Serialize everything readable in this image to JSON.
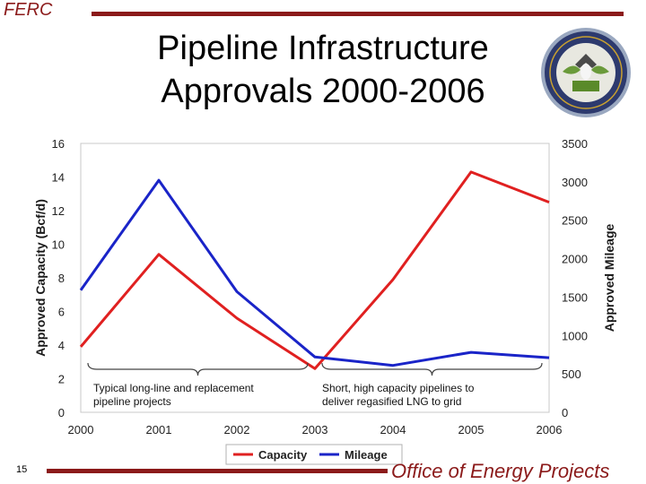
{
  "header": {
    "org_label": "FERC",
    "title_line1": "Pipeline Infrastructure",
    "title_line2": "Approvals 2000-2006"
  },
  "footer": {
    "page_number": "15",
    "office": "Office of Energy Projects"
  },
  "colors": {
    "brand": "#8b1a1a",
    "capacity": "#e02020",
    "mileage": "#1a24c8"
  },
  "chart_data": {
    "type": "line",
    "x": [
      2000,
      2001,
      2002,
      2003,
      2004,
      2005,
      2006
    ],
    "xlabel": "",
    "ylabel": "Approved Capacity (Bcf/d)",
    "y2label": "Approved Mileage",
    "ylim": [
      0,
      16
    ],
    "y2lim": [
      0,
      3500
    ],
    "yticks": [
      0,
      2,
      4,
      6,
      8,
      10,
      12,
      14,
      16
    ],
    "y2ticks": [
      0,
      500,
      1000,
      1500,
      2000,
      2500,
      3000,
      3500
    ],
    "grid": false,
    "legend": "bottom",
    "series": [
      {
        "name": "Capacity",
        "axis": "left",
        "color": "#e02020",
        "values": [
          3.9,
          9.4,
          5.6,
          2.6,
          7.9,
          14.3,
          12.5
        ]
      },
      {
        "name": "Mileage",
        "axis": "right",
        "color": "#1a24c8",
        "values": [
          1590,
          3020,
          1570,
          720,
          610,
          780,
          710
        ]
      }
    ],
    "annotations": [
      {
        "text_line1": "Typical long-line and replacement",
        "text_line2": "pipeline projects",
        "span": [
          2000,
          2003
        ]
      },
      {
        "text_line1": "Short, high capacity pipelines to",
        "text_line2": "deliver regasified LNG to grid",
        "span": [
          2003,
          2006
        ]
      }
    ]
  }
}
